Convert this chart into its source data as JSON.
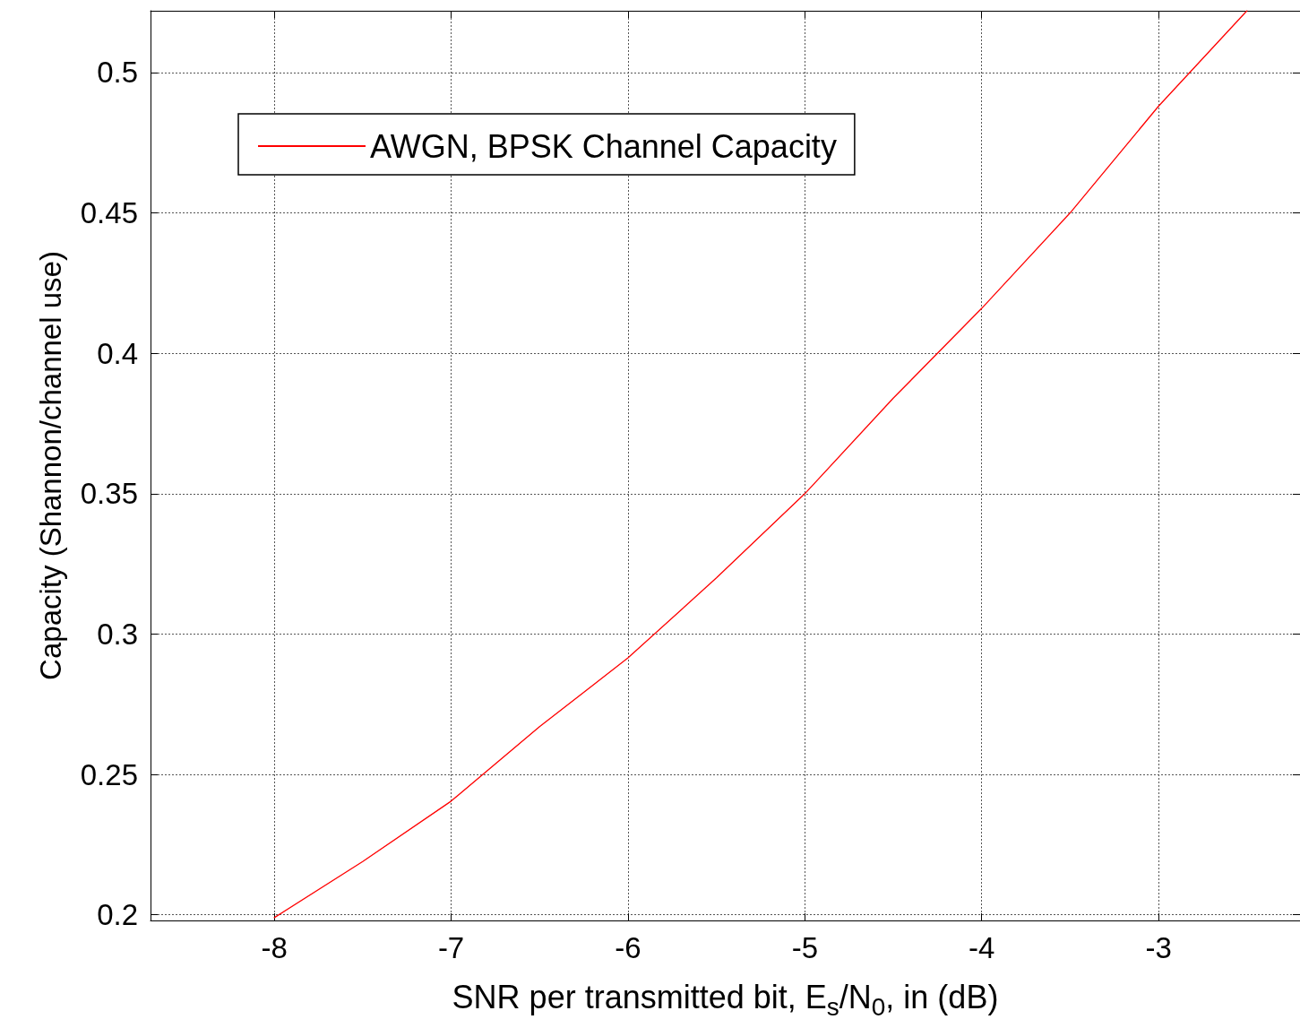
{
  "chart_data": {
    "type": "line",
    "xlabel": "SNR per transmitted bit, E$_{s}$/N$_{0}$, in (dB)",
    "ylabel": "Capacity (Shannon/channel use)",
    "x": [
      -8,
      -7.5,
      -7,
      -6.5,
      -6,
      -5.5,
      -5,
      -4.5,
      -4,
      -3.5,
      -3,
      -2.5
    ],
    "series": [
      {
        "name": "AWGN, BPSK Channel Capacity",
        "color": "#ff0000",
        "values": [
          0.199,
          0.219,
          0.2405,
          0.267,
          0.2915,
          0.32,
          0.35,
          0.384,
          0.416,
          0.45,
          0.488,
          0.522
        ]
      }
    ],
    "xlim": [
      -8.7,
      -2.2
    ],
    "xticks": [
      -8,
      -7,
      -6,
      -5,
      -4,
      -3
    ],
    "ylim": [
      0.198,
      0.522
    ],
    "yticks": [
      0.2,
      0.25,
      0.3,
      0.35,
      0.4,
      0.45,
      0.5
    ],
    "grid": true,
    "legend": "top left",
    "marker": "none",
    "line_style": "solid"
  }
}
